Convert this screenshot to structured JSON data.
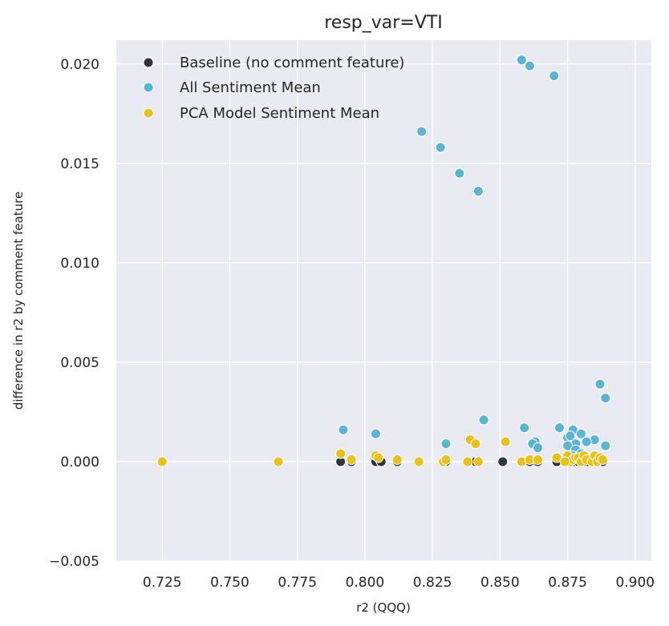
{
  "chart_data": {
    "type": "scatter",
    "title": "resp_var=VTI",
    "xlabel": "r2 (QQQ)",
    "ylabel": "difference in r2 by comment feature",
    "xlim": [
      0.708,
      0.906
    ],
    "ylim": [
      -0.005,
      0.0212
    ],
    "xticks": [
      0.725,
      0.75,
      0.775,
      0.8,
      0.825,
      0.85,
      0.875,
      0.9
    ],
    "yticks": [
      -0.005,
      0.0,
      0.005,
      0.01,
      0.015,
      0.02
    ],
    "xtick_labels": [
      "0.725",
      "0.750",
      "0.775",
      "0.800",
      "0.825",
      "0.850",
      "0.875",
      "0.900"
    ],
    "ytick_labels": [
      "−0.005",
      "0.000",
      "0.005",
      "0.010",
      "0.015",
      "0.020"
    ],
    "grid": true,
    "background": "#eaeaf2",
    "legend_position": "top-left",
    "series": [
      {
        "name": "Baseline (no comment feature)",
        "color": "#2e3440",
        "points": [
          [
            0.791,
            0.0
          ],
          [
            0.795,
            0.0
          ],
          [
            0.804,
            0.0
          ],
          [
            0.806,
            0.0
          ],
          [
            0.812,
            0.0
          ],
          [
            0.829,
            0.0
          ],
          [
            0.83,
            0.0
          ],
          [
            0.841,
            0.0
          ],
          [
            0.842,
            0.0
          ],
          [
            0.851,
            0.0
          ],
          [
            0.858,
            0.0
          ],
          [
            0.861,
            0.0
          ],
          [
            0.864,
            0.0
          ],
          [
            0.871,
            0.0
          ],
          [
            0.875,
            0.0
          ],
          [
            0.877,
            0.0
          ],
          [
            0.879,
            0.0
          ],
          [
            0.881,
            0.0
          ],
          [
            0.883,
            0.0
          ],
          [
            0.885,
            0.0
          ],
          [
            0.887,
            0.0
          ],
          [
            0.888,
            0.0
          ]
        ]
      },
      {
        "name": "All Sentiment Mean",
        "color": "#5ab4d2",
        "points": [
          [
            0.858,
            0.0202
          ],
          [
            0.861,
            0.0199
          ],
          [
            0.87,
            0.0194
          ],
          [
            0.821,
            0.0166
          ],
          [
            0.828,
            0.0158
          ],
          [
            0.835,
            0.0145
          ],
          [
            0.842,
            0.0136
          ],
          [
            0.887,
            0.0039
          ],
          [
            0.889,
            0.0032
          ],
          [
            0.844,
            0.0021
          ],
          [
            0.792,
            0.0016
          ],
          [
            0.804,
            0.0014
          ],
          [
            0.859,
            0.0017
          ],
          [
            0.872,
            0.0017
          ],
          [
            0.877,
            0.0016
          ],
          [
            0.88,
            0.0014
          ],
          [
            0.875,
            0.0012
          ],
          [
            0.876,
            0.0013
          ],
          [
            0.885,
            0.0011
          ],
          [
            0.882,
            0.001
          ],
          [
            0.863,
            0.001
          ],
          [
            0.878,
            0.0009
          ],
          [
            0.83,
            0.0009
          ],
          [
            0.862,
            0.0009
          ],
          [
            0.875,
            0.0008
          ],
          [
            0.889,
            0.0008
          ],
          [
            0.864,
            0.0007
          ],
          [
            0.878,
            0.0006
          ],
          [
            0.88,
            0.0004
          ],
          [
            0.877,
            0.0003
          ]
        ]
      },
      {
        "name": "PCA Model Sentiment Mean",
        "color": "#e8c11d",
        "points": [
          [
            0.725,
            0.0
          ],
          [
            0.768,
            0.0
          ],
          [
            0.791,
            0.0004
          ],
          [
            0.795,
            0.0001
          ],
          [
            0.804,
            0.0003
          ],
          [
            0.805,
            0.0002
          ],
          [
            0.812,
            0.0001
          ],
          [
            0.82,
            0.0
          ],
          [
            0.829,
            0.0
          ],
          [
            0.83,
            0.0001
          ],
          [
            0.838,
            0.0
          ],
          [
            0.839,
            0.0011
          ],
          [
            0.841,
            0.0009
          ],
          [
            0.842,
            0.0
          ],
          [
            0.852,
            0.001
          ],
          [
            0.858,
            0.0
          ],
          [
            0.861,
            0.0001
          ],
          [
            0.864,
            0.0001
          ],
          [
            0.871,
            0.0002
          ],
          [
            0.875,
            0.0003
          ],
          [
            0.876,
            0.0
          ],
          [
            0.877,
            0.0001
          ],
          [
            0.878,
            0.0002
          ],
          [
            0.879,
            0.0002
          ],
          [
            0.88,
            0.0
          ],
          [
            0.881,
            0.0003
          ],
          [
            0.882,
            0.0001
          ],
          [
            0.884,
            0.0
          ],
          [
            0.885,
            0.0003
          ],
          [
            0.886,
            0.0
          ],
          [
            0.887,
            0.0002
          ],
          [
            0.888,
            0.0001
          ],
          [
            0.874,
            0.0
          ]
        ]
      }
    ]
  }
}
